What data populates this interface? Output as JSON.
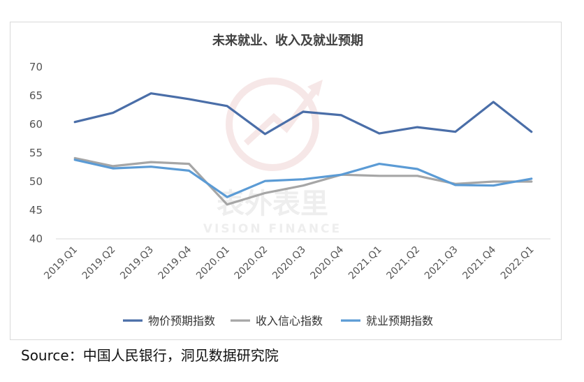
{
  "chart_data": {
    "type": "line",
    "title": "未来就业、收入及就业预期",
    "categories": [
      "2019.Q1",
      "2019.Q2",
      "2019.Q3",
      "2019.Q4",
      "2020.Q1",
      "2020.Q2",
      "2020.Q3",
      "2020.Q4",
      "2021.Q1",
      "2021.Q2",
      "2021.Q3",
      "2021.Q4",
      "2022.Q1"
    ],
    "ylim": [
      40,
      70
    ],
    "yticks": [
      40,
      45,
      50,
      55,
      60,
      65,
      70
    ],
    "grid": "horizontal baseline only",
    "legend_position": "bottom",
    "series": [
      {
        "name": "物价预期指数",
        "color": "#4a6ea8",
        "values": [
          60.4,
          62.0,
          65.4,
          64.4,
          63.2,
          58.3,
          62.2,
          61.6,
          58.4,
          59.5,
          58.7,
          63.9,
          58.7
        ]
      },
      {
        "name": "收入信心指数",
        "color": "#a6a6a6",
        "values": [
          54.1,
          52.7,
          53.4,
          53.1,
          46.0,
          48.0,
          49.3,
          51.2,
          51.0,
          51.0,
          49.6,
          50.0,
          50.0
        ]
      },
      {
        "name": "就业预期指数",
        "color": "#5b9bd5",
        "values": [
          53.8,
          52.3,
          52.6,
          51.9,
          47.3,
          50.1,
          50.4,
          51.2,
          53.1,
          52.2,
          49.4,
          49.3,
          50.5
        ]
      }
    ]
  },
  "watermark": {
    "brand_cn": "表外表里",
    "brand_en": "VISION FINANCE"
  },
  "source": "Source：中国人民银行，洞见数据研究院"
}
